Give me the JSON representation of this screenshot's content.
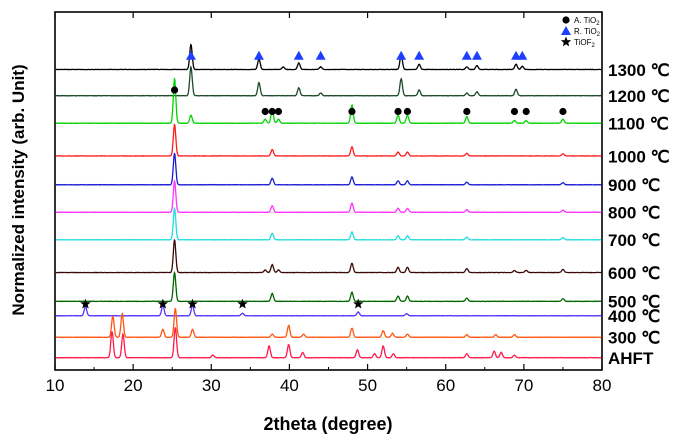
{
  "chart_data": {
    "type": "line",
    "title": "",
    "xlabel": "2theta (degree)",
    "ylabel": "Normalized intensity (arb. Unit)",
    "xlim": [
      10,
      80
    ],
    "xticks": [
      10,
      20,
      30,
      40,
      50,
      60,
      70,
      80
    ],
    "legend": {
      "placement": "top-right",
      "entries": [
        {
          "name": "A. TiO",
          "subscript": "2",
          "marker": "circle",
          "color": "#000000"
        },
        {
          "name": "R. TiO",
          "subscript": "2",
          "marker": "triangle",
          "color": "#1f3fff"
        },
        {
          "name": "TiOF",
          "subscript": "2",
          "marker": "star",
          "color": "#000000"
        }
      ]
    },
    "series": [
      {
        "name": "1300 ℃",
        "color": "#000000",
        "offset": 11.0,
        "peaks": [
          [
            27.4,
            0.95
          ],
          [
            36.1,
            0.4
          ],
          [
            39.2,
            0.1
          ],
          [
            41.2,
            0.25
          ],
          [
            44.0,
            0.1
          ],
          [
            54.3,
            0.55
          ],
          [
            56.6,
            0.2
          ],
          [
            62.7,
            0.1
          ],
          [
            64.0,
            0.15
          ],
          [
            69.0,
            0.2
          ],
          [
            69.8,
            0.12
          ]
        ]
      },
      {
        "name": "1200 ℃",
        "color": "#1d4a2a",
        "offset": 10.0,
        "peaks": [
          [
            27.4,
            1.1
          ],
          [
            36.1,
            0.5
          ],
          [
            41.2,
            0.3
          ],
          [
            44.0,
            0.1
          ],
          [
            54.3,
            0.65
          ],
          [
            56.6,
            0.22
          ],
          [
            62.7,
            0.1
          ],
          [
            64.0,
            0.15
          ],
          [
            69.0,
            0.25
          ]
        ]
      },
      {
        "name": "1100 ℃",
        "color": "#00d400",
        "offset": 8.95,
        "peaks": [
          [
            25.3,
            1.7
          ],
          [
            27.4,
            0.3
          ],
          [
            36.9,
            0.15
          ],
          [
            37.8,
            0.5
          ],
          [
            38.6,
            0.15
          ],
          [
            48.0,
            0.7
          ],
          [
            53.9,
            0.3
          ],
          [
            55.1,
            0.3
          ],
          [
            62.7,
            0.25
          ],
          [
            68.8,
            0.1
          ],
          [
            70.3,
            0.1
          ],
          [
            75.0,
            0.15
          ]
        ]
      },
      {
        "name": "1000 ℃",
        "color": "#ff1a1a",
        "offset": 7.7,
        "peaks": [
          [
            25.3,
            1.2
          ],
          [
            37.8,
            0.25
          ],
          [
            48.0,
            0.35
          ],
          [
            53.9,
            0.15
          ],
          [
            55.1,
            0.15
          ],
          [
            62.7,
            0.1
          ],
          [
            75.0,
            0.08
          ]
        ]
      },
      {
        "name": "900 ℃",
        "color": "#1a1ad4",
        "offset": 6.6,
        "peaks": [
          [
            25.3,
            1.2
          ],
          [
            37.8,
            0.25
          ],
          [
            48.0,
            0.3
          ],
          [
            53.9,
            0.15
          ],
          [
            55.1,
            0.15
          ],
          [
            62.7,
            0.1
          ],
          [
            75.0,
            0.08
          ]
        ]
      },
      {
        "name": "800 ℃",
        "color": "#ff33ff",
        "offset": 5.55,
        "peaks": [
          [
            25.3,
            1.2
          ],
          [
            37.8,
            0.25
          ],
          [
            48.0,
            0.35
          ],
          [
            53.9,
            0.15
          ],
          [
            55.1,
            0.15
          ],
          [
            62.7,
            0.1
          ],
          [
            75.0,
            0.08
          ]
        ]
      },
      {
        "name": "700 ℃",
        "color": "#22dddd",
        "offset": 4.5,
        "peaks": [
          [
            25.3,
            1.2
          ],
          [
            37.8,
            0.25
          ],
          [
            48.0,
            0.3
          ],
          [
            53.9,
            0.15
          ],
          [
            55.1,
            0.15
          ],
          [
            62.7,
            0.1
          ],
          [
            75.0,
            0.08
          ]
        ]
      },
      {
        "name": "600 ℃",
        "color": "#3a0a0a",
        "offset": 3.25,
        "peaks": [
          [
            25.3,
            1.25
          ],
          [
            36.9,
            0.1
          ],
          [
            37.8,
            0.3
          ],
          [
            38.6,
            0.1
          ],
          [
            48.0,
            0.35
          ],
          [
            53.9,
            0.2
          ],
          [
            55.1,
            0.2
          ],
          [
            62.7,
            0.15
          ],
          [
            68.8,
            0.08
          ],
          [
            70.3,
            0.08
          ],
          [
            75.0,
            0.12
          ]
        ]
      },
      {
        "name": "500 ℃",
        "color": "#006600",
        "offset": 2.15,
        "peaks": [
          [
            25.3,
            1.1
          ],
          [
            37.8,
            0.3
          ],
          [
            48.0,
            0.35
          ],
          [
            53.9,
            0.2
          ],
          [
            55.1,
            0.2
          ],
          [
            62.7,
            0.12
          ],
          [
            75.0,
            0.1
          ]
        ]
      },
      {
        "name": "400 ℃",
        "color": "#5533ff",
        "offset": 1.6,
        "peaks": [
          [
            13.9,
            0.35
          ],
          [
            23.8,
            0.4
          ],
          [
            27.6,
            0.4
          ],
          [
            34.0,
            0.1
          ],
          [
            48.8,
            0.15
          ],
          [
            55.0,
            0.08
          ]
        ]
      },
      {
        "name": "300 ℃",
        "color": "#ff5511",
        "offset": 0.78,
        "peaks": [
          [
            17.4,
            0.8
          ],
          [
            18.6,
            0.9
          ],
          [
            23.8,
            0.3
          ],
          [
            25.4,
            1.1
          ],
          [
            27.6,
            0.3
          ],
          [
            37.8,
            0.12
          ],
          [
            39.9,
            0.45
          ],
          [
            41.8,
            0.12
          ],
          [
            48.0,
            0.35
          ],
          [
            52.0,
            0.25
          ],
          [
            53.2,
            0.15
          ],
          [
            55.1,
            0.12
          ],
          [
            62.7,
            0.1
          ],
          [
            66.4,
            0.1
          ],
          [
            68.8,
            0.1
          ]
        ]
      },
      {
        "name": "AHFT",
        "color": "#ff1a4a",
        "offset": 0.0,
        "peaks": [
          [
            17.3,
            1.0
          ],
          [
            18.7,
            0.9
          ],
          [
            25.4,
            1.15
          ],
          [
            30.2,
            0.1
          ],
          [
            37.4,
            0.45
          ],
          [
            39.9,
            0.5
          ],
          [
            41.7,
            0.2
          ],
          [
            48.7,
            0.3
          ],
          [
            50.9,
            0.15
          ],
          [
            52.0,
            0.45
          ],
          [
            53.3,
            0.15
          ],
          [
            62.7,
            0.15
          ],
          [
            66.2,
            0.25
          ],
          [
            67.1,
            0.2
          ],
          [
            68.8,
            0.1
          ]
        ]
      }
    ],
    "markers": {
      "circle": {
        "row": "1100 ℃",
        "positions": [
          36.9,
          37.8,
          38.6,
          48.0,
          53.9,
          55.1,
          62.7,
          68.8,
          70.3,
          75.0
        ],
        "extra": [
          [
            25.3,
            "1200 ℃"
          ]
        ]
      },
      "triangle": {
        "row": "1300 ℃",
        "positions": [
          27.4,
          36.1,
          41.2,
          44.0,
          54.3,
          56.6,
          62.7,
          64.0,
          69.0,
          69.8
        ]
      },
      "star": {
        "row": "400 ℃",
        "positions": [
          13.9,
          23.8,
          27.6,
          34.0,
          48.8
        ]
      }
    }
  }
}
